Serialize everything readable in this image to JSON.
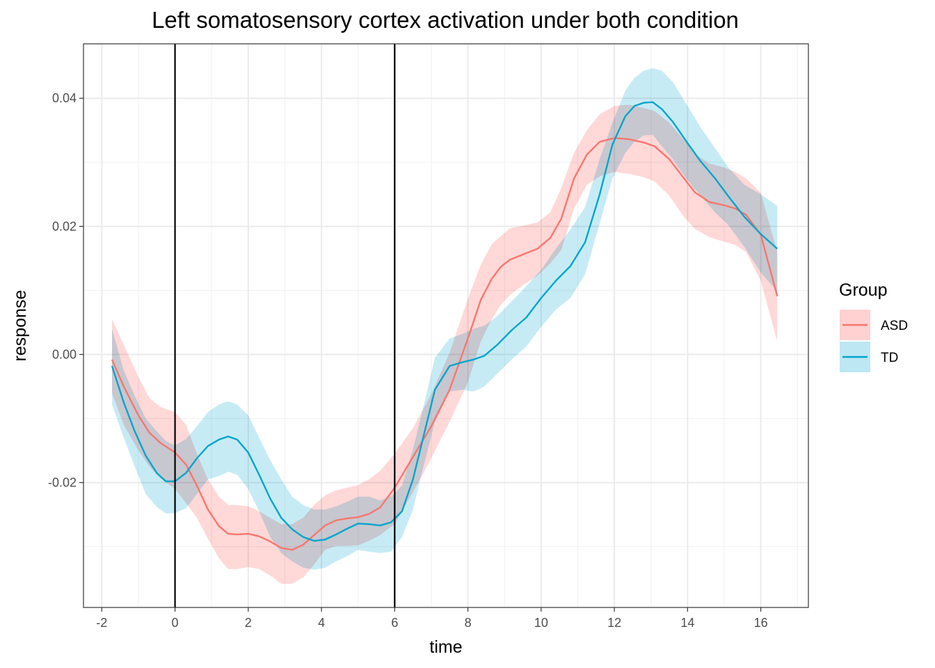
{
  "chart_data": {
    "type": "line",
    "title": "Left somatosensory cortex activation under both condition",
    "xlabel": "time",
    "ylabel": "response",
    "xlim": [
      -2.5,
      17.3
    ],
    "ylim": [
      -0.0395,
      0.0485
    ],
    "x_ticks": [
      -2,
      0,
      2,
      4,
      6,
      8,
      10,
      12,
      14,
      16
    ],
    "x_tick_labels": [
      "-2",
      "0",
      "2",
      "4",
      "6",
      "8",
      "10",
      "12",
      "14",
      "16"
    ],
    "y_ticks": [
      -0.02,
      0.0,
      0.02,
      0.04
    ],
    "y_tick_labels": [
      "-0.02",
      "0.00",
      "0.02",
      "0.04"
    ],
    "vlines": [
      0,
      6
    ],
    "grid": true,
    "legend": {
      "title": "Group",
      "position": "right"
    },
    "series": [
      {
        "name": "ASD",
        "color": "#F8766D",
        "ribbon_color": "#FFD1D1",
        "x": [
          -1.72,
          -1.4,
          -1.0,
          -0.7,
          -0.4,
          0.0,
          0.3,
          0.6,
          0.9,
          1.2,
          1.45,
          1.7,
          2.0,
          2.3,
          2.6,
          2.9,
          3.2,
          3.5,
          3.8,
          4.1,
          4.4,
          4.7,
          5.0,
          5.3,
          5.6,
          6.0,
          6.5,
          7.0,
          7.5,
          8.0,
          8.35,
          8.65,
          8.9,
          9.15,
          9.5,
          9.9,
          10.25,
          10.55,
          10.9,
          11.25,
          11.6,
          12.0,
          12.4,
          12.8,
          13.1,
          13.5,
          13.9,
          14.2,
          14.6,
          15.0,
          15.3,
          15.6,
          16.0,
          16.45
        ],
        "y": [
          -0.0008,
          -0.005,
          -0.0095,
          -0.0122,
          -0.0138,
          -0.0153,
          -0.0172,
          -0.0205,
          -0.0242,
          -0.0268,
          -0.028,
          -0.0281,
          -0.028,
          -0.0284,
          -0.0292,
          -0.0302,
          -0.0305,
          -0.0297,
          -0.0282,
          -0.0267,
          -0.0259,
          -0.0256,
          -0.0254,
          -0.0249,
          -0.0239,
          -0.0208,
          -0.016,
          -0.0112,
          -0.0055,
          0.0025,
          0.0085,
          0.0118,
          0.0137,
          0.0148,
          0.0156,
          0.0165,
          0.0182,
          0.0212,
          0.0275,
          0.0312,
          0.0332,
          0.0338,
          0.0336,
          0.0331,
          0.0325,
          0.0305,
          0.0275,
          0.0253,
          0.0238,
          0.0233,
          0.0228,
          0.0218,
          0.0187,
          0.0091
        ],
        "upper": [
          0.0055,
          0.0015,
          -0.0035,
          -0.0068,
          -0.0082,
          -0.009,
          -0.011,
          -0.0155,
          -0.0195,
          -0.0222,
          -0.0235,
          -0.0235,
          -0.0237,
          -0.0245,
          -0.0255,
          -0.0265,
          -0.0265,
          -0.0255,
          -0.0235,
          -0.022,
          -0.0212,
          -0.0208,
          -0.0204,
          -0.0195,
          -0.0182,
          -0.0155,
          -0.0115,
          -0.0062,
          0.0003,
          0.0087,
          0.014,
          0.0172,
          0.0185,
          0.0197,
          0.0201,
          0.0206,
          0.0222,
          0.026,
          0.0315,
          0.035,
          0.0375,
          0.0388,
          0.039,
          0.0385,
          0.038,
          0.0362,
          0.0335,
          0.0313,
          0.0298,
          0.0292,
          0.0285,
          0.0275,
          0.0252,
          0.016
        ],
        "lower": [
          -0.006,
          -0.011,
          -0.015,
          -0.0175,
          -0.0193,
          -0.021,
          -0.0232,
          -0.0255,
          -0.0288,
          -0.0318,
          -0.0335,
          -0.0335,
          -0.0332,
          -0.0335,
          -0.0345,
          -0.0358,
          -0.0358,
          -0.0348,
          -0.0328,
          -0.0305,
          -0.0299,
          -0.0299,
          -0.0298,
          -0.0291,
          -0.0282,
          -0.0265,
          -0.0215,
          -0.0162,
          -0.0105,
          -0.0043,
          0.002,
          0.0055,
          0.0078,
          0.0093,
          0.0108,
          0.0123,
          0.0142,
          0.0163,
          0.0228,
          0.0265,
          0.0278,
          0.0285,
          0.0282,
          0.0277,
          0.027,
          0.0248,
          0.0215,
          0.0196,
          0.0183,
          0.0176,
          0.0171,
          0.016,
          0.0115,
          0.002
        ]
      },
      {
        "name": "TD",
        "color": "#00A5CC",
        "ribbon_color": "#BDE7F3",
        "x": [
          -1.72,
          -1.4,
          -1.1,
          -0.8,
          -0.5,
          -0.25,
          0.0,
          0.3,
          0.6,
          0.9,
          1.2,
          1.45,
          1.7,
          2.0,
          2.3,
          2.6,
          2.9,
          3.2,
          3.5,
          3.8,
          4.1,
          4.4,
          4.7,
          5.0,
          5.3,
          5.6,
          5.9,
          6.2,
          6.5,
          6.8,
          7.1,
          7.5,
          7.85,
          8.15,
          8.45,
          8.8,
          9.2,
          9.6,
          10.0,
          10.4,
          10.8,
          11.2,
          11.6,
          11.95,
          12.3,
          12.55,
          12.8,
          13.05,
          13.3,
          13.6,
          14.0,
          14.35,
          14.75,
          15.1,
          15.55,
          16.0,
          16.45
        ],
        "y": [
          -0.0018,
          -0.0075,
          -0.012,
          -0.0158,
          -0.0185,
          -0.0198,
          -0.0198,
          -0.0185,
          -0.0162,
          -0.0143,
          -0.0133,
          -0.0128,
          -0.0133,
          -0.0153,
          -0.0188,
          -0.0225,
          -0.0255,
          -0.0273,
          -0.0285,
          -0.0291,
          -0.0289,
          -0.0281,
          -0.0272,
          -0.0264,
          -0.0265,
          -0.0267,
          -0.0262,
          -0.0245,
          -0.0195,
          -0.0125,
          -0.0055,
          -0.0018,
          -0.0012,
          -0.0008,
          -0.0002,
          0.0015,
          0.0038,
          0.0058,
          0.0088,
          0.0115,
          0.0138,
          0.0175,
          0.025,
          0.0328,
          0.0372,
          0.0388,
          0.0393,
          0.0394,
          0.0383,
          0.0363,
          0.033,
          0.0302,
          0.0275,
          0.0248,
          0.0215,
          0.0188,
          0.0165
        ],
        "upper": [
          0.004,
          -0.0025,
          -0.0065,
          -0.01,
          -0.012,
          -0.0135,
          -0.0142,
          -0.0132,
          -0.0112,
          -0.009,
          -0.0078,
          -0.0073,
          -0.0078,
          -0.0095,
          -0.013,
          -0.0165,
          -0.0195,
          -0.0222,
          -0.0235,
          -0.0242,
          -0.0242,
          -0.0237,
          -0.023,
          -0.0222,
          -0.0222,
          -0.0228,
          -0.0222,
          -0.0205,
          -0.0148,
          -0.0078,
          -0.0005,
          0.0025,
          0.0032,
          0.004,
          0.0045,
          0.006,
          0.0083,
          0.0107,
          0.0132,
          0.0165,
          0.0195,
          0.023,
          0.0305,
          0.0362,
          0.0412,
          0.0432,
          0.0443,
          0.0447,
          0.0443,
          0.0425,
          0.0388,
          0.0355,
          0.0322,
          0.0293,
          0.0265,
          0.025,
          0.0232
        ],
        "lower": [
          -0.0078,
          -0.013,
          -0.0175,
          -0.0218,
          -0.0238,
          -0.0248,
          -0.0248,
          -0.024,
          -0.0218,
          -0.0195,
          -0.019,
          -0.0183,
          -0.0188,
          -0.021,
          -0.0245,
          -0.0285,
          -0.031,
          -0.0323,
          -0.0333,
          -0.0336,
          -0.0333,
          -0.0323,
          -0.0315,
          -0.0305,
          -0.0308,
          -0.031,
          -0.0308,
          -0.0285,
          -0.0242,
          -0.0172,
          -0.0105,
          -0.0058,
          -0.0055,
          -0.0058,
          -0.005,
          -0.003,
          -0.0008,
          0.0013,
          0.0043,
          0.007,
          0.0088,
          0.0125,
          0.0205,
          0.0275,
          0.0315,
          0.0332,
          0.0342,
          0.0343,
          0.0325,
          0.0305,
          0.0272,
          0.0248,
          0.0222,
          0.0203,
          0.0168,
          0.0128,
          0.0098
        ]
      }
    ]
  }
}
